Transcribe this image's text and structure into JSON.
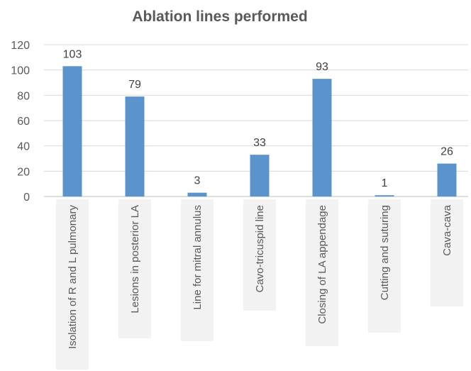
{
  "chart_data": {
    "type": "bar",
    "title": "Ablation lines performed",
    "xlabel": "",
    "ylabel": "",
    "categories": [
      "Isolation of R and L pulmonary",
      "Lesions in posterior LA",
      "Line for mitral annulus",
      "Cavo-tricuspid line",
      "Closing of LA appendage",
      "Cutting and suturing",
      "Cava-cava"
    ],
    "values": [
      103,
      79,
      3,
      33,
      93,
      1,
      26
    ],
    "ylim": [
      0,
      120
    ],
    "yticks": [
      0,
      20,
      40,
      60,
      80,
      100,
      120
    ],
    "grid": true,
    "legend": "none",
    "bar_color": "#5b93cc"
  }
}
